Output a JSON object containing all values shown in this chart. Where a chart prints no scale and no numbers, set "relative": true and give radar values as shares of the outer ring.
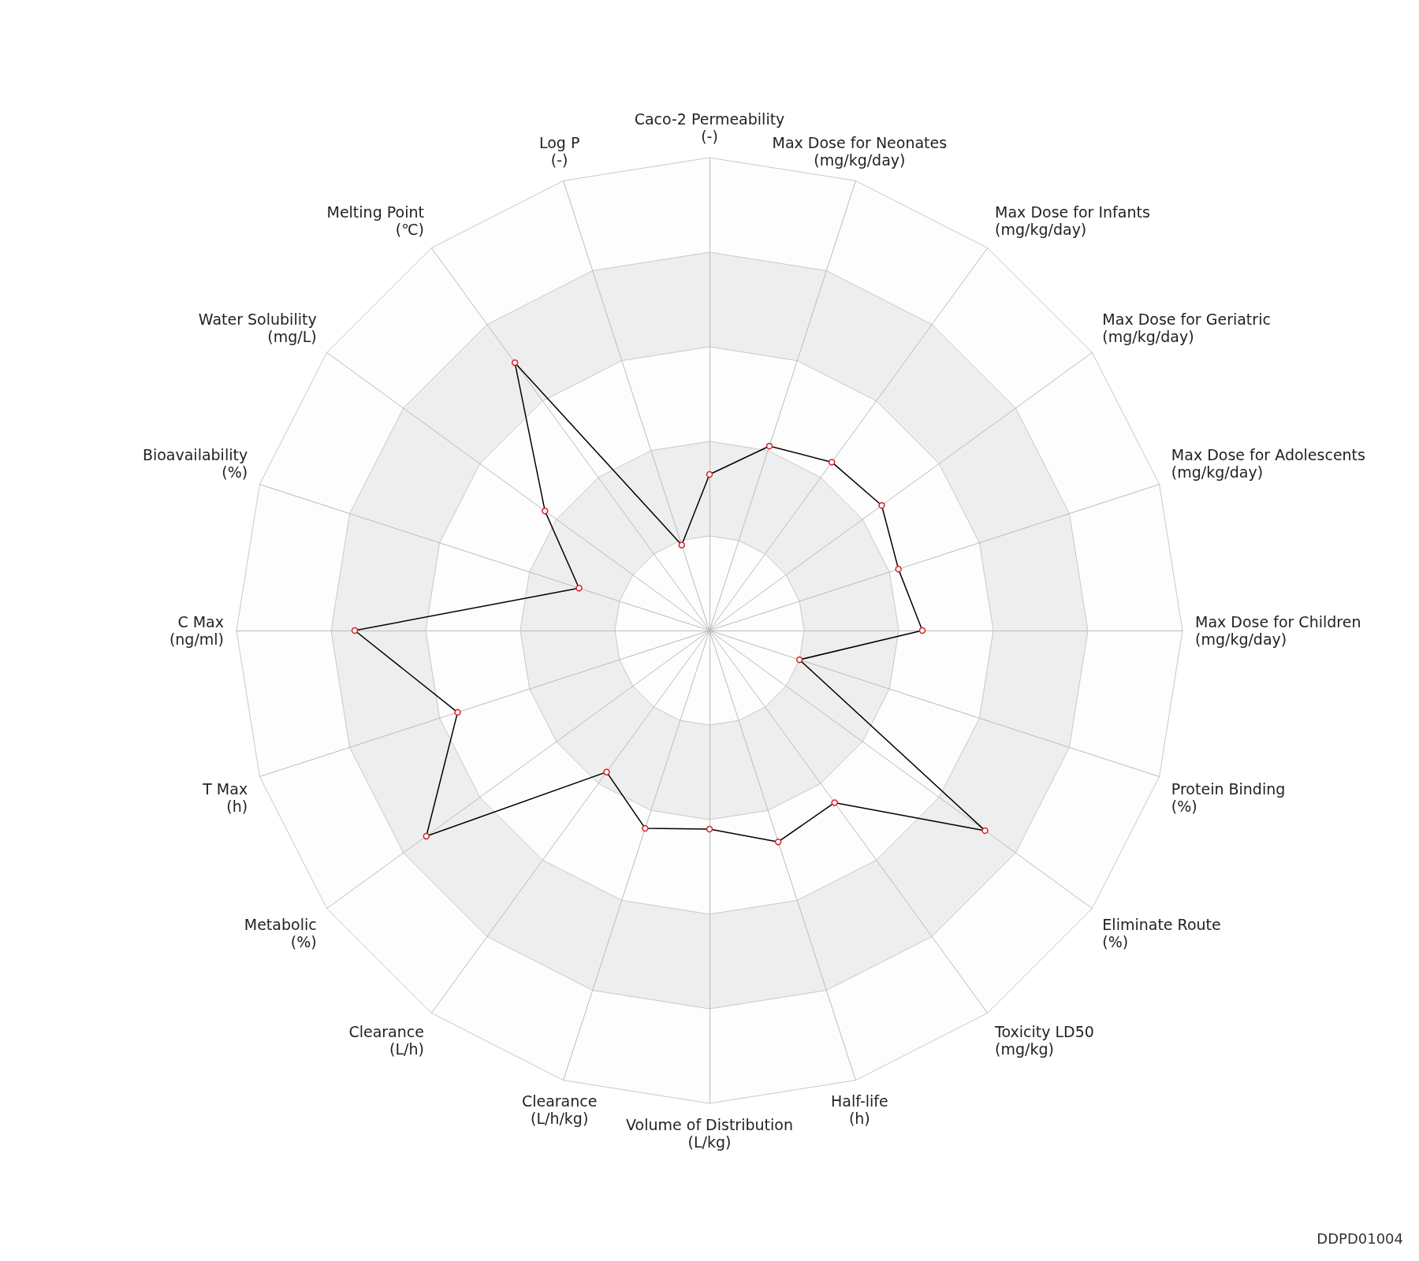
{
  "chart_data": {
    "type": "radar",
    "relative": true,
    "grid": true,
    "marker": "circle",
    "categories": [
      "Caco-2 Permeability\n(-)",
      "Max Dose for Neonates\n(mg/kg/day)",
      "Max Dose for Infants\n(mg/kg/day)",
      "Max Dose for Geriatric\n(mg/kg/day)",
      "Max Dose for Adolescents\n(mg/kg/day)",
      "Max Dose for Children\n(mg/kg/day)",
      "Protein Binding\n(%)",
      "Eliminate Route\n(%)",
      "Toxicity LD50\n(mg/kg)",
      "Half-life\n(h)",
      "Volume of Distribution\n(L/kg)",
      "Clearance\n(L/h/kg)",
      "Clearance\n(L/h)",
      "Metabolic\n(%)",
      "T Max\n(h)",
      "C Max\n(ng/ml)",
      "Bioavailability\n(%)",
      "Water Solubility\n(mg/L)",
      "Melting Point\n(℃)",
      "Log P\n(-)"
    ],
    "series": [
      {
        "color": "#000000",
        "values": [
          0.33,
          0.41,
          0.44,
          0.45,
          0.42,
          0.45,
          0.2,
          0.72,
          0.45,
          0.47,
          0.42,
          0.44,
          0.37,
          0.74,
          0.56,
          0.75,
          0.29,
          0.43,
          0.7,
          0.19
        ]
      }
    ],
    "annotations": [
      "DDPD01004"
    ]
  }
}
